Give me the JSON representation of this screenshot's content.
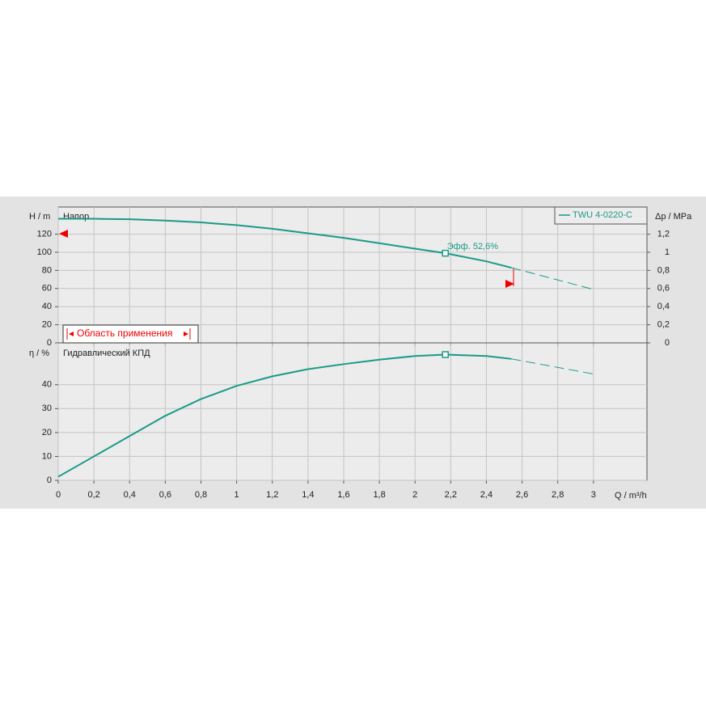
{
  "chart_data": [
    {
      "type": "line",
      "title": "Напор",
      "y_label": "H / m",
      "y2_label": "Δp / MPa",
      "xlim": [
        0,
        3.3
      ],
      "ylim": [
        0,
        150
      ],
      "yticks": [
        0,
        20,
        40,
        60,
        80,
        100,
        120
      ],
      "y2lim": [
        0,
        1.5
      ],
      "y2ticks": [
        0,
        {
          "value": 0.2,
          "label": "0,2"
        },
        {
          "value": 0.4,
          "label": "0,4"
        },
        {
          "value": 0.6,
          "label": "0,6"
        },
        {
          "value": 0.8,
          "label": "0,8"
        },
        1,
        {
          "value": 1.2,
          "label": "1,2"
        }
      ],
      "grid": true,
      "legend": "top-right",
      "x": [
        0,
        0.2,
        0.4,
        0.6,
        0.8,
        1.0,
        1.2,
        1.4,
        1.6,
        1.8,
        2.0,
        2.17,
        2.4,
        2.54
      ],
      "series": [
        {
          "name": "TWU 4-0220-C",
          "color": "#1a9a88",
          "values": [
            137,
            137,
            136.5,
            135,
            133,
            130,
            126,
            121,
            116,
            110,
            104,
            99,
            90,
            83
          ]
        }
      ],
      "extrapolation": {
        "x": [
          2.54,
          3.0
        ],
        "values": [
          83,
          59
        ]
      },
      "operating_point": {
        "x": 2.17,
        "y": 99
      },
      "annotation": "Эфф.  52,6%",
      "region_label": "Область применения"
    },
    {
      "type": "line",
      "title": "Гидравлический КПД",
      "y_label": "η / %",
      "x_label": "Q / m³/h",
      "xlim": [
        0,
        3.3
      ],
      "ylim": [
        0,
        57.5
      ],
      "yticks": [
        0,
        10,
        20,
        30,
        40
      ],
      "xticks": [
        0,
        {
          "value": 0.2,
          "label": "0,2"
        },
        {
          "value": 0.4,
          "label": "0,4"
        },
        {
          "value": 0.6,
          "label": "0,6"
        },
        {
          "value": 0.8,
          "label": "0,8"
        },
        1,
        {
          "value": 1.2,
          "label": "1,2"
        },
        {
          "value": 1.4,
          "label": "1,4"
        },
        {
          "value": 1.6,
          "label": "1,6"
        },
        {
          "value": 1.8,
          "label": "1,8"
        },
        2,
        {
          "value": 2.2,
          "label": "2,2"
        },
        {
          "value": 2.4,
          "label": "2,4"
        },
        {
          "value": 2.6,
          "label": "2,6"
        },
        {
          "value": 2.8,
          "label": "2,8"
        },
        3
      ],
      "grid": true,
      "x": [
        0,
        0.2,
        0.4,
        0.6,
        0.8,
        1.0,
        1.2,
        1.4,
        1.6,
        1.8,
        2.0,
        2.17,
        2.4,
        2.54
      ],
      "series": [
        {
          "color": "#1a9a88",
          "values": [
            1.5,
            10,
            18.5,
            27,
            34,
            39.5,
            43.5,
            46.5,
            48.6,
            50.5,
            52.0,
            52.6,
            52.0,
            50.8
          ]
        }
      ],
      "extrapolation": {
        "x": [
          2.54,
          3.0
        ],
        "values": [
          50.8,
          44.5
        ]
      },
      "operating_point": {
        "x": 2.17,
        "y": 52.6
      }
    }
  ]
}
